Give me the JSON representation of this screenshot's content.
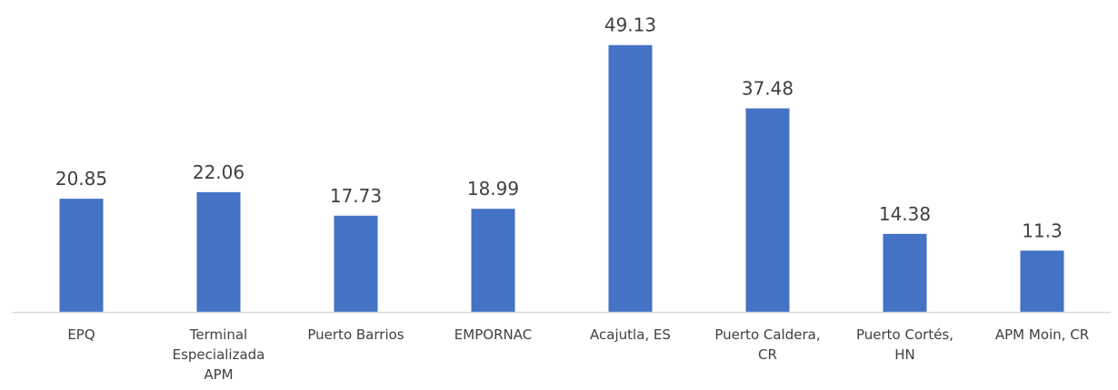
{
  "chart_data": {
    "type": "bar",
    "categories": [
      [
        "EPQ"
      ],
      [
        "Terminal",
        "Especializada",
        "APM"
      ],
      [
        "Puerto Barrios"
      ],
      [
        "EMPORNAC"
      ],
      [
        "Acajutla, ES"
      ],
      [
        "Puerto Caldera,",
        "CR"
      ],
      [
        "Puerto Cortés,",
        "HN"
      ],
      [
        "APM Moin, CR"
      ]
    ],
    "values": [
      20.85,
      22.06,
      17.73,
      18.99,
      49.13,
      37.48,
      14.38,
      11.3
    ],
    "value_labels": [
      "20.85",
      "22.06",
      "17.73",
      "18.99",
      "49.13",
      "37.48",
      "14.38",
      "11.3"
    ],
    "title": "",
    "xlabel": "",
    "ylabel": "",
    "ylim": [
      0,
      49.13
    ],
    "grid": false,
    "legend": "none",
    "bar_color": "#4472C4",
    "axis_color": "#D9D9D9",
    "text_color": "#404040"
  }
}
